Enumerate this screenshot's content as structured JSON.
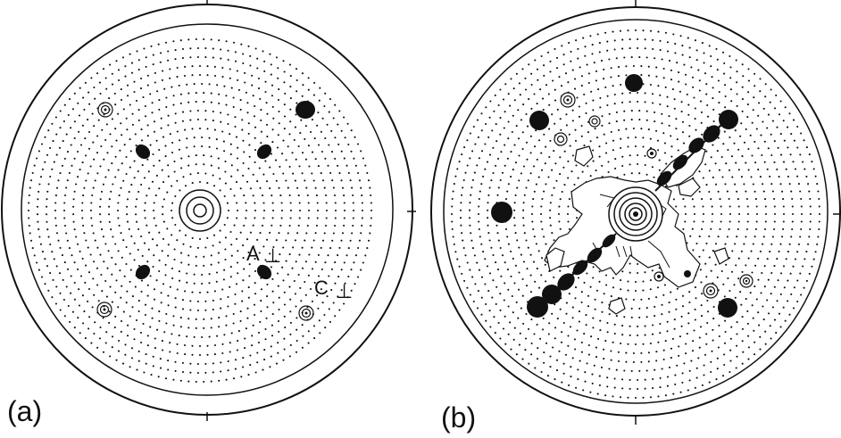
{
  "panels": [
    {
      "label": "(a)",
      "annotations": [
        "A",
        "⊥",
        "C",
        "⊥"
      ]
    },
    {
      "label": "(b)",
      "annotations": []
    }
  ],
  "colors": {
    "ink": "#111111",
    "background": "#ffffff"
  }
}
